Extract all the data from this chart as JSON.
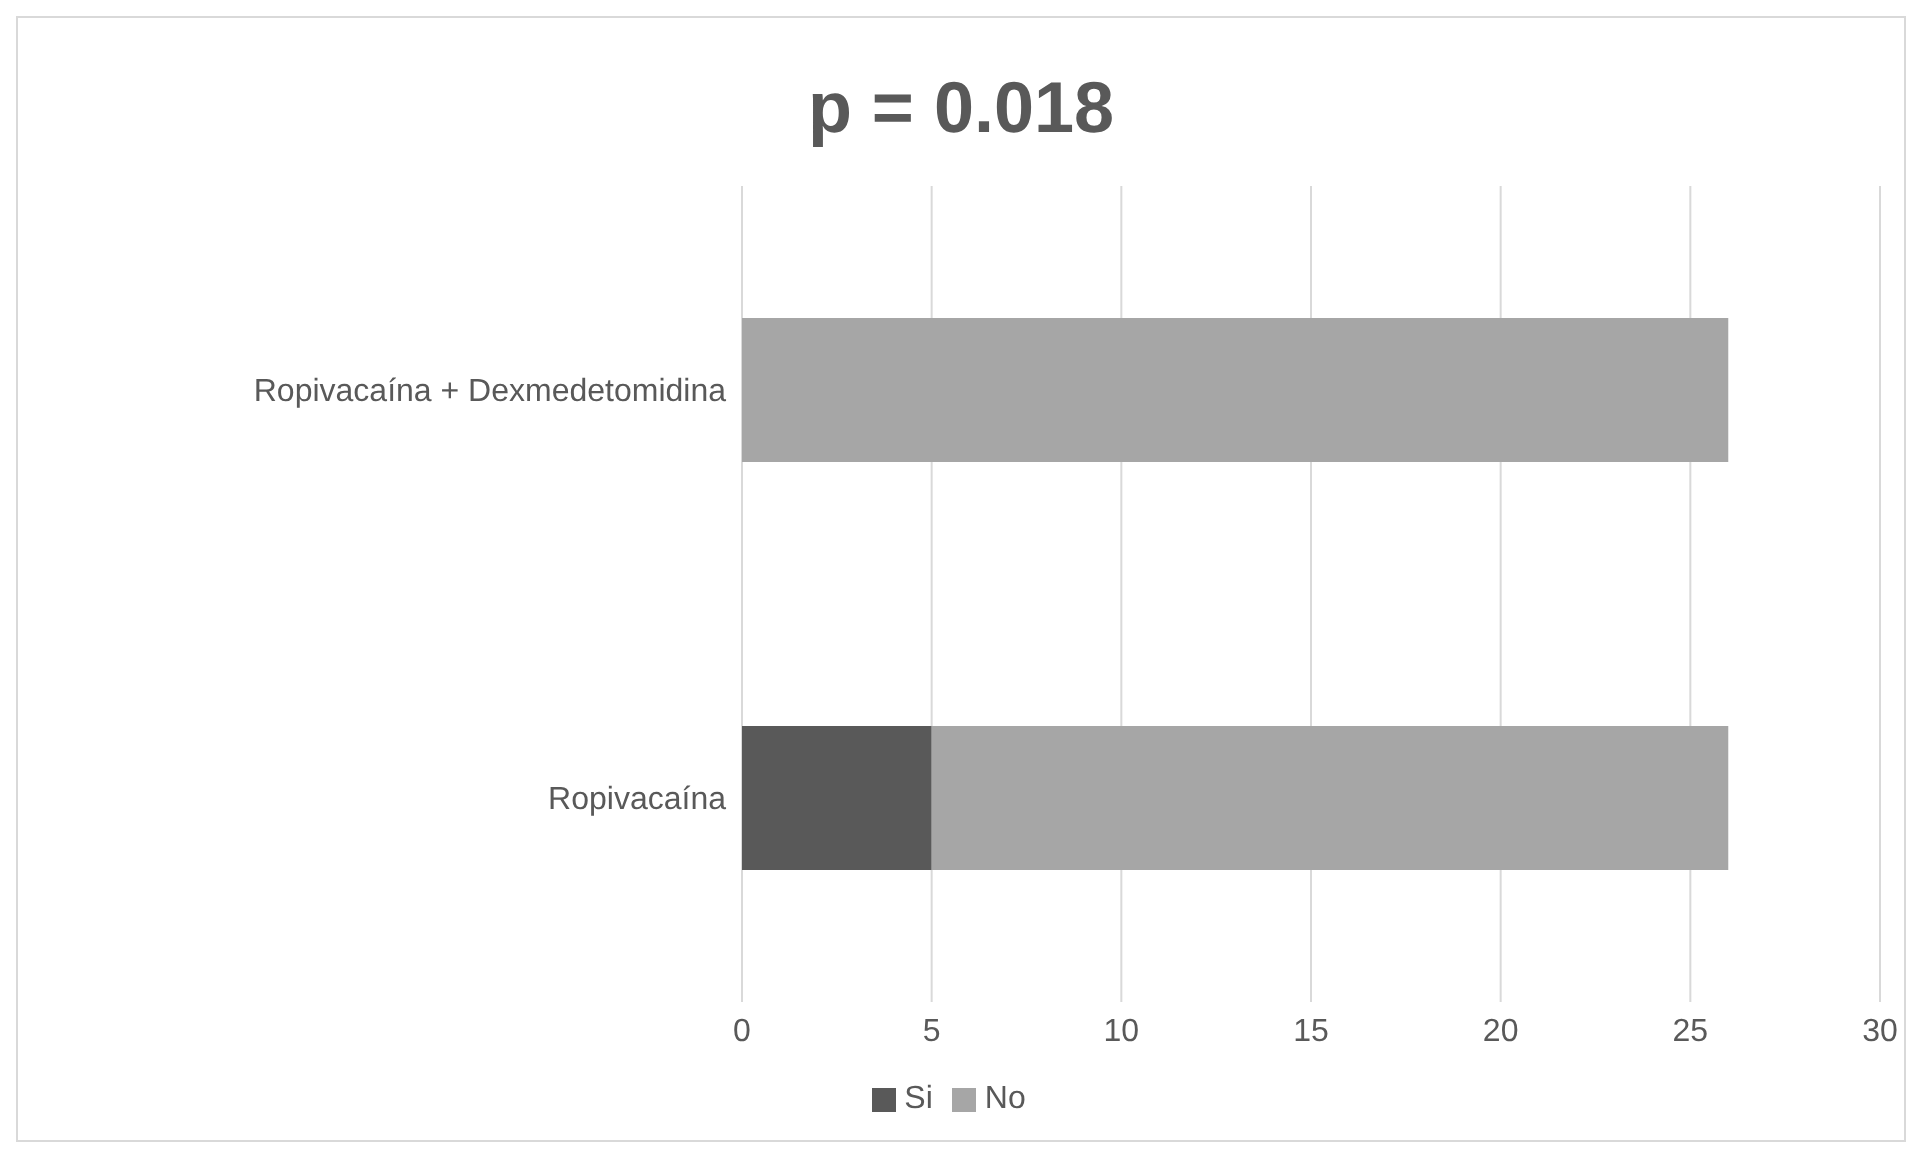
{
  "chart_data": {
    "type": "bar",
    "title": "p = 0.018",
    "orientation": "horizontal",
    "stacked": true,
    "categories": [
      "Ropivacaína + Dexmedetomidina",
      "Ropivacaína"
    ],
    "series": [
      {
        "name": "Si",
        "color": "#595959",
        "values": [
          0,
          5
        ]
      },
      {
        "name": "No",
        "color": "#a6a6a6",
        "values": [
          26,
          21
        ]
      }
    ],
    "xlim": [
      0,
      30
    ],
    "xticks": [
      0,
      5,
      10,
      15,
      20,
      25,
      30
    ],
    "grid": "x",
    "legend": "bottom"
  }
}
